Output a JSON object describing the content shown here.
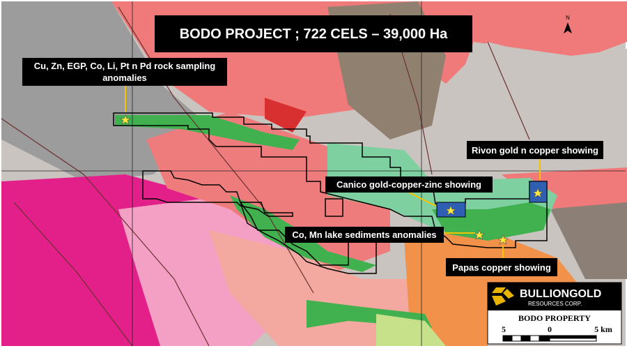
{
  "title": "BODO PROJECT ; 722 CELS – 39,000 Ha",
  "north": "N",
  "callouts": [
    {
      "lines": [
        "Cu, Zn, EGP, Co, Li, Pt n Pd rock sampling",
        "anomalies"
      ]
    },
    {
      "lines": [
        "Rivon gold n copper showing"
      ]
    },
    {
      "lines": [
        "Canico gold-copper-zinc  showing"
      ]
    },
    {
      "lines": [
        "Co, Mn lake sediments anomalies"
      ]
    },
    {
      "lines": [
        "Papas copper showing"
      ]
    }
  ],
  "legend": {
    "company": "BULLIONGOLD",
    "company_sub": "RESOURCES CORP.",
    "property": "BODO PROPERTY",
    "scale_labels": [
      "5",
      "0",
      "5 km"
    ]
  }
}
